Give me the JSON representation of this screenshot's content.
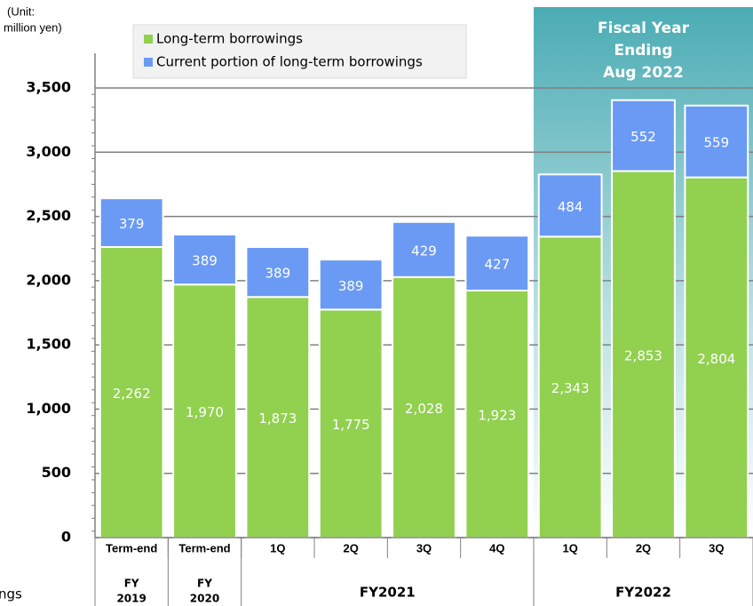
{
  "chart_data": {
    "type": "stacked_bar",
    "unit_label": [
      "(Unit:",
      "million yen)"
    ],
    "categories": [
      "Term-end",
      "Term-end",
      "1Q",
      "2Q",
      "3Q",
      "4Q",
      "1Q",
      "2Q",
      "3Q"
    ],
    "groups": [
      {
        "label": [
          "FY",
          "2019"
        ],
        "span": 1
      },
      {
        "label": [
          "FY",
          "2020"
        ],
        "span": 1
      },
      {
        "label": [
          "FY2021"
        ],
        "span": 4
      },
      {
        "label": [
          "FY2022"
        ],
        "span": 3
      }
    ],
    "highlight": {
      "label": [
        "Fiscal Year",
        "Ending",
        "Aug 2022"
      ],
      "span": 3
    },
    "series": [
      {
        "name": "Long-term borrowings",
        "color": "#92d050",
        "values": [
          2262,
          1970,
          1873,
          1775,
          2028,
          1923,
          2343,
          2853,
          2804
        ],
        "value_labels": [
          "2,262",
          "1,970",
          "1,873",
          "1,775",
          "2,028",
          "1,923",
          "2,343",
          "2,853",
          "2,804"
        ]
      },
      {
        "name": "Current portion of long-term borrowings",
        "color": "#6a9af4",
        "values": [
          379,
          389,
          389,
          389,
          429,
          427,
          484,
          552,
          559
        ]
      }
    ],
    "ylim": [
      0,
      3500
    ],
    "yticks": [
      0,
      500,
      {
        "value": 1000,
        "label": "1,000"
      },
      {
        "value": 1500,
        "label": "1,500"
      },
      {
        "value": 2000,
        "label": "2,000"
      },
      {
        "value": 2500,
        "label": "2,500"
      },
      {
        "value": 3000,
        "label": "3,000"
      },
      {
        "value": 3500,
        "label": "3,500"
      }
    ],
    "grid": true,
    "note": "ngs"
  }
}
